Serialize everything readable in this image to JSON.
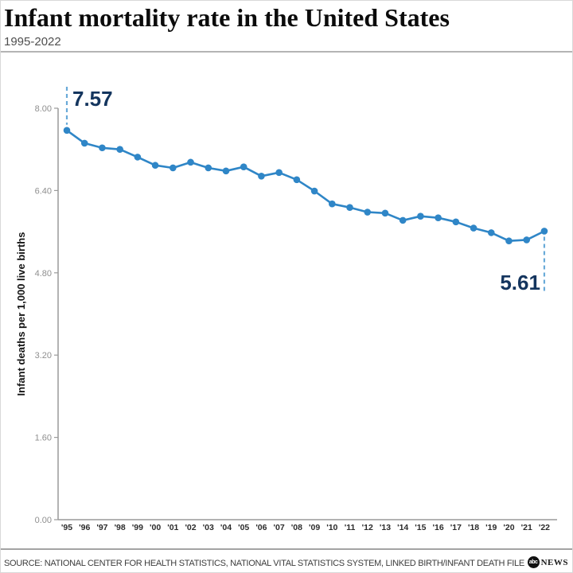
{
  "header": {
    "title": "Infant mortality rate in the United States",
    "subtitle": "1995-2022"
  },
  "chart_data": {
    "type": "line",
    "title": "Infant mortality rate in the United States",
    "subtitle": "1995-2022",
    "xlabel": "",
    "ylabel": "Infant deaths per 1,000 live births",
    "years": [
      1995,
      1996,
      1997,
      1998,
      1999,
      2000,
      2001,
      2002,
      2003,
      2004,
      2005,
      2006,
      2007,
      2008,
      2009,
      2010,
      2011,
      2012,
      2013,
      2014,
      2015,
      2016,
      2017,
      2018,
      2019,
      2020,
      2021,
      2022
    ],
    "x_tick_labels": [
      "'95",
      "'96",
      "'97",
      "'98",
      "'99",
      "'00",
      "'01",
      "'02",
      "'03",
      "'04",
      "'05",
      "'06",
      "'07",
      "'08",
      "'09",
      "'10",
      "'11",
      "'12",
      "'13",
      "'14",
      "'15",
      "'16",
      "'17",
      "'18",
      "'19",
      "'20",
      "'21",
      "'22"
    ],
    "values": [
      7.57,
      7.32,
      7.23,
      7.2,
      7.05,
      6.89,
      6.84,
      6.95,
      6.84,
      6.78,
      6.86,
      6.68,
      6.75,
      6.61,
      6.39,
      6.14,
      6.07,
      5.98,
      5.96,
      5.82,
      5.9,
      5.87,
      5.79,
      5.67,
      5.58,
      5.42,
      5.44,
      5.61
    ],
    "ylim": [
      0,
      8.0
    ],
    "y_ticks": [
      8.0,
      6.4,
      4.8,
      3.2,
      1.6,
      0.0
    ],
    "grid": false,
    "legend": false,
    "annotations": [
      {
        "index": 0,
        "label": "7.57",
        "position": "above"
      },
      {
        "index": 27,
        "label": "5.61",
        "position": "below"
      }
    ],
    "colors": {
      "line": "#2f86c7",
      "marker": "#2f86c7",
      "dashed": "#69aad8",
      "annotation_text": "#14355e",
      "axis": "#9a9a9a"
    }
  },
  "footer": {
    "source": "SOURCE: NATIONAL CENTER FOR HEALTH STATISTICS, NATIONAL VITAL STATISTICS SYSTEM, LINKED BIRTH/INFANT DEATH FILE",
    "logo_abc": "abc",
    "logo_news": "NEWS"
  }
}
